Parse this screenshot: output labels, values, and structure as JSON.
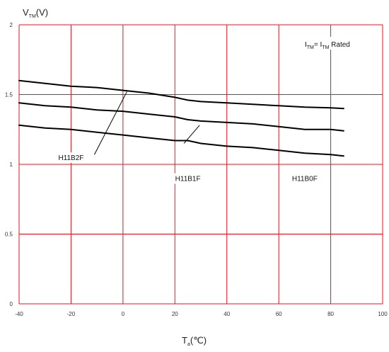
{
  "chart_data": {
    "type": "line",
    "ylabel": {
      "main": "V",
      "sub": "TM",
      "unit": "(V)"
    },
    "xlabel": {
      "main": "T",
      "sub": "a",
      "unit": "(℃)"
    },
    "xlim": [
      -40,
      100
    ],
    "ylim": [
      0,
      2
    ],
    "xticks": [
      "-40",
      "-20",
      "0",
      "20",
      "40",
      "60",
      "80",
      "100"
    ],
    "yticks": [
      "0",
      "0.5",
      "1",
      "1.5",
      "2"
    ],
    "grid": true,
    "grid_color": "#e8131d",
    "line_color": "#000000",
    "condition": {
      "a": "I",
      "a_sub": "TM",
      "eq": "= I",
      "b_sub": "TM",
      "tail": " Rated"
    },
    "series": [
      {
        "name": "H11B2F",
        "x": [
          -40,
          -30,
          -20,
          -10,
          0,
          10,
          20,
          25,
          30,
          40,
          50,
          60,
          70,
          80,
          85
        ],
        "y": [
          1.6,
          1.58,
          1.56,
          1.55,
          1.53,
          1.51,
          1.48,
          1.46,
          1.45,
          1.44,
          1.43,
          1.42,
          1.41,
          1.405,
          1.4
        ]
      },
      {
        "name": "H11B1F",
        "x": [
          -40,
          -30,
          -20,
          -10,
          0,
          10,
          20,
          25,
          30,
          40,
          50,
          60,
          70,
          80,
          85
        ],
        "y": [
          1.44,
          1.42,
          1.41,
          1.39,
          1.38,
          1.36,
          1.34,
          1.32,
          1.31,
          1.3,
          1.29,
          1.27,
          1.25,
          1.25,
          1.24
        ]
      },
      {
        "name": "H11B0F",
        "x": [
          -40,
          -30,
          -20,
          -10,
          0,
          10,
          20,
          25,
          30,
          40,
          50,
          60,
          70,
          80,
          85
        ],
        "y": [
          1.28,
          1.26,
          1.25,
          1.23,
          1.21,
          1.19,
          1.17,
          1.17,
          1.15,
          1.13,
          1.12,
          1.1,
          1.08,
          1.07,
          1.06
        ]
      }
    ],
    "annotations": [
      {
        "series": "H11B2F",
        "text": "H11B2F",
        "label_at": [
          -20,
          1.03
        ],
        "pointer": [
          [
            -11,
            1.07
          ],
          [
            1.5,
            1.52
          ]
        ]
      },
      {
        "series": "H11B1F",
        "text": "H11B1F",
        "label_at": [
          25,
          0.88
        ],
        "pointer": [
          [
            23.5,
            1.15
          ],
          [
            29.5,
            1.28
          ]
        ]
      },
      {
        "series": "H11B0F",
        "text": "H11B0F",
        "label_at": [
          70,
          0.88
        ],
        "pointer": null
      }
    ]
  }
}
